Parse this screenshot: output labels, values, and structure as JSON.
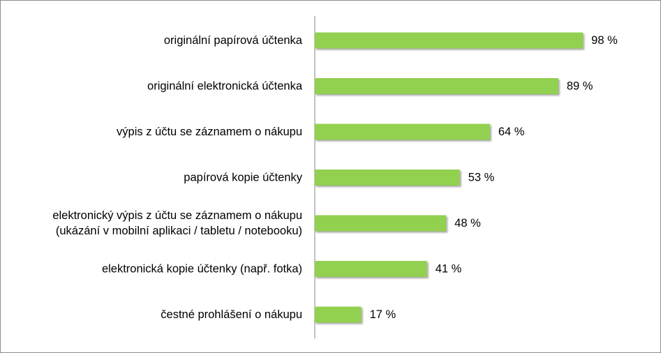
{
  "chart_data": {
    "type": "bar",
    "orientation": "horizontal",
    "categories": [
      [
        "originální papírová účtenka"
      ],
      [
        "originální elektronická účtenka"
      ],
      [
        "výpis z účtu se záznamem o nákupu"
      ],
      [
        "papírová kopie účtenky"
      ],
      [
        "elektronický výpis z účtu se záznamem o nákupu",
        "(ukázání v mobilní aplikaci / tabletu / notebooku)"
      ],
      [
        "elektronická kopie účtenky (např. fotka)"
      ],
      [
        "čestné prohlášení o nákupu"
      ]
    ],
    "values": [
      98,
      89,
      64,
      53,
      48,
      41,
      17
    ],
    "value_labels": [
      "98 %",
      "89 %",
      "64 %",
      "53 %",
      "48 %",
      "41 %",
      "17 %"
    ],
    "xlim": [
      0,
      100
    ],
    "bar_color": "#92d050",
    "axis_color": "#868686",
    "grid": false,
    "legend": "none"
  }
}
